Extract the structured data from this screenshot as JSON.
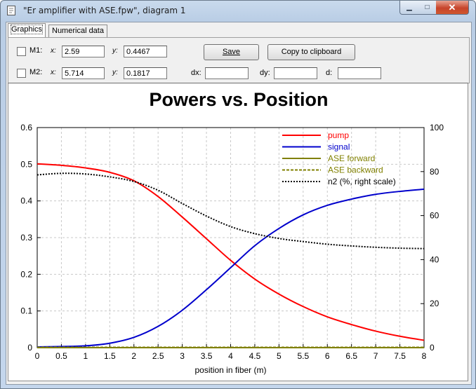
{
  "window": {
    "title": "\"Er amplifier with ASE.fpw\", diagram 1",
    "minimize_glyph": "▁",
    "maximize_glyph": "□",
    "close_glyph": "✕",
    "app_icon": "document-icon"
  },
  "tabs": [
    {
      "label": "Graphics",
      "active": true
    },
    {
      "label": "Numerical data",
      "active": false
    }
  ],
  "markers": {
    "m1": {
      "label": "M1:",
      "checked": false,
      "x_label": "x:",
      "x": "2.59",
      "y_label": "y:",
      "y": "0.4467"
    },
    "m2": {
      "label": "M2:",
      "checked": false,
      "x_label": "x:",
      "x": "5.714",
      "y_label": "y:",
      "y": "0.1817"
    },
    "dx_label": "dx:",
    "dx": "",
    "dy_label": "dy:",
    "dy": "",
    "d_label": "d:",
    "d": ""
  },
  "buttons": {
    "save": "Save",
    "copy": "Copy to clipboard"
  },
  "colors": {
    "pump": "#ff0000",
    "signal": "#0000cc",
    "ase_forward": "#808000",
    "ase_backward": "#808000",
    "n2": "#000000"
  },
  "chart_data": {
    "type": "line",
    "title": "Powers vs. Position",
    "xlabel": "position in fiber (m)",
    "ylabel": "",
    "xlim": [
      0,
      8
    ],
    "ylim": [
      0,
      0.6
    ],
    "y2lim": [
      0,
      100
    ],
    "grid": true,
    "legend_position": "top-right",
    "x_ticks": [
      "0",
      "0.5",
      "1",
      "1.5",
      "2",
      "2.5",
      "3",
      "3.5",
      "4",
      "4.5",
      "5",
      "5.5",
      "6",
      "6.5",
      "7",
      "7.5",
      "8"
    ],
    "y_ticks": [
      "0",
      "0.1",
      "0.2",
      "0.3",
      "0.4",
      "0.5",
      "0.6"
    ],
    "y2_ticks": [
      "0",
      "20",
      "40",
      "60",
      "80",
      "100"
    ],
    "x": [
      0,
      0.5,
      1,
      1.5,
      2,
      2.5,
      3,
      3.5,
      4,
      4.5,
      5,
      5.5,
      6,
      6.5,
      7,
      7.5,
      8
    ],
    "series": [
      {
        "name": "pump",
        "axis": "left",
        "style": "solid",
        "values": [
          0.501,
          0.497,
          0.49,
          0.478,
          0.455,
          0.412,
          0.356,
          0.297,
          0.238,
          0.187,
          0.146,
          0.112,
          0.084,
          0.063,
          0.045,
          0.031,
          0.02
        ]
      },
      {
        "name": "signal",
        "axis": "left",
        "style": "solid",
        "values": [
          0.002,
          0.003,
          0.005,
          0.012,
          0.028,
          0.058,
          0.102,
          0.158,
          0.218,
          0.278,
          0.325,
          0.362,
          0.388,
          0.405,
          0.418,
          0.426,
          0.432
        ]
      },
      {
        "name": "ASE forward",
        "axis": "left",
        "style": "solid",
        "values": [
          0,
          0,
          0,
          0,
          0,
          0,
          0,
          0,
          0,
          0,
          0,
          0,
          0,
          0,
          0,
          0,
          0
        ]
      },
      {
        "name": "ASE backward",
        "axis": "left",
        "style": "dashed",
        "values": [
          0.001,
          0.001,
          0.001,
          0.001,
          0.001,
          0.001,
          0.001,
          0.001,
          0.001,
          0.001,
          0.001,
          0.001,
          0.001,
          0.001,
          0.001,
          0.001,
          0.001
        ]
      },
      {
        "name": "n2 (%, right scale)",
        "axis": "right",
        "style": "dotted",
        "values": [
          78.5,
          79.2,
          78.9,
          77.6,
          75.5,
          71.5,
          65.5,
          59.8,
          55.0,
          51.8,
          49.6,
          48.2,
          47.0,
          46.2,
          45.6,
          45.2,
          45.0
        ]
      }
    ]
  }
}
